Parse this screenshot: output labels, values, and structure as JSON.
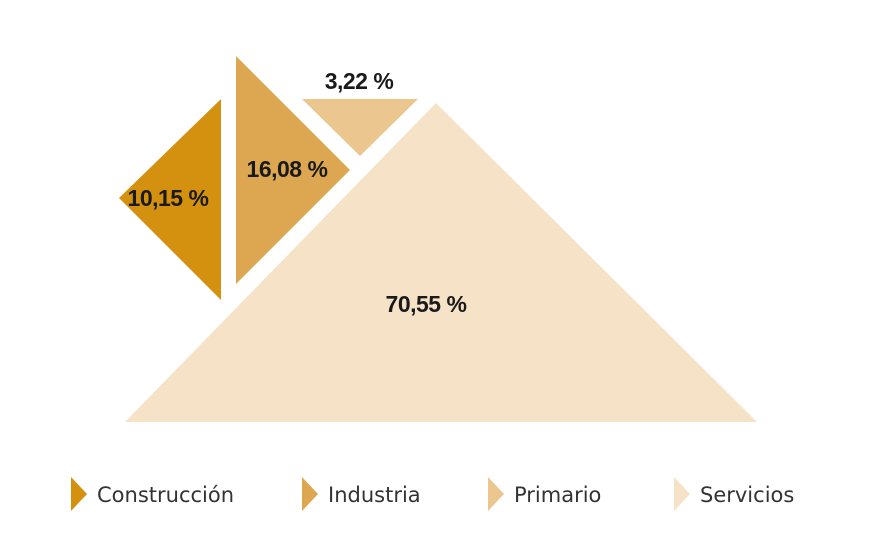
{
  "chart_data": {
    "type": "pie",
    "categories": [
      "Construcción",
      "Industria",
      "Primario",
      "Servicios"
    ],
    "values": [
      10.15,
      16.08,
      3.22,
      70.55
    ],
    "value_labels": [
      "10,15 %",
      "16,08 %",
      "3,22 %",
      "70,55 %"
    ],
    "colors": [
      "#d4900f",
      "#dda651",
      "#ebc68e",
      "#f5e2c7"
    ],
    "legend_position": "bottom",
    "grid": false
  }
}
